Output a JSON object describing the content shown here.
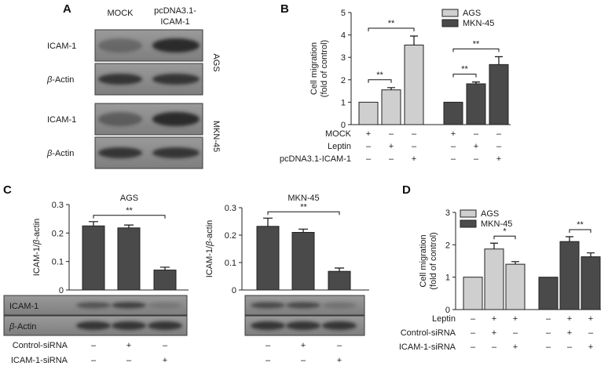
{
  "colors": {
    "light_bar": "#cfcfcf",
    "dark_bar": "#4a4a4a",
    "blot_bg": "#8a8a8a",
    "band": "#262626"
  },
  "panels": {
    "A": {
      "letter": "A",
      "columns": [
        "MOCK",
        "pcDNA3.1-",
        "ICAM-1"
      ],
      "blots": [
        {
          "cell_line": "AGS",
          "rows": [
            {
              "label": "ICAM-1",
              "label_italic_prefix": "",
              "label_rest": "ICAM-1",
              "intensity": [
                0.35,
                0.95
              ]
            },
            {
              "label": "β-Actin",
              "label_italic_prefix": "β",
              "label_rest": "-Actin",
              "intensity": [
                0.85,
                0.85
              ]
            }
          ]
        },
        {
          "cell_line": "MKN-45",
          "rows": [
            {
              "label": "ICAM-1",
              "label_italic_prefix": "",
              "label_rest": "ICAM-1",
              "intensity": [
                0.45,
                0.95
              ]
            },
            {
              "label": "β-Actin",
              "label_italic_prefix": "β",
              "label_rest": "-Actin",
              "intensity": [
                0.85,
                0.85
              ]
            }
          ]
        }
      ]
    },
    "B": {
      "letter": "B"
    },
    "C": {
      "letter": "C",
      "blot_labels": [
        "ICAM-1",
        "β-Actin"
      ]
    },
    "D": {
      "letter": "D"
    }
  },
  "chart_data": [
    {
      "id": "B",
      "type": "bar",
      "ylabel_lines": [
        "Cell migration",
        "(fold of control)"
      ],
      "ylim": [
        0,
        5
      ],
      "yticks": [
        "0",
        "1",
        "2",
        "3",
        "4",
        "5"
      ],
      "legend": [
        "AGS",
        "MKN-45"
      ],
      "legend_position": "top-right",
      "series": [
        {
          "name": "AGS",
          "color": "light",
          "values": [
            1.0,
            1.55,
            3.55
          ],
          "errors": [
            0,
            0.1,
            0.4
          ]
        },
        {
          "name": "MKN-45",
          "color": "dark",
          "values": [
            1.0,
            1.82,
            2.68
          ],
          "errors": [
            0,
            0.08,
            0.35
          ]
        }
      ],
      "significance": [
        {
          "series": 0,
          "from": 0,
          "to": 1,
          "label": "**"
        },
        {
          "series": 0,
          "from": 0,
          "to": 2,
          "label": "**"
        },
        {
          "series": 1,
          "from": 0,
          "to": 1,
          "label": "**"
        },
        {
          "series": 1,
          "from": 0,
          "to": 2,
          "label": "**"
        }
      ],
      "conditions": [
        {
          "label": "MOCK",
          "marks": [
            "+",
            "–",
            "–",
            "+",
            "–",
            "–"
          ]
        },
        {
          "label": "Leptin",
          "marks": [
            "–",
            "+",
            "–",
            "–",
            "+",
            "–"
          ]
        },
        {
          "label": "pcDNA3.1-ICAM-1",
          "marks": [
            "–",
            "–",
            "+",
            "–",
            "–",
            "+"
          ]
        }
      ]
    },
    {
      "id": "C1",
      "type": "bar",
      "title": "AGS",
      "ylabel": "ICAM-1/β-actin",
      "ylabel_italic": "β",
      "ylim": [
        0,
        0.3
      ],
      "yticks": [
        "0",
        "0.1",
        "0.2",
        "0.3"
      ],
      "values": [
        0.225,
        0.218,
        0.07
      ],
      "errors": [
        0.015,
        0.01,
        0.01
      ],
      "significance": [
        {
          "from": 0,
          "to": 2,
          "label": "**"
        }
      ],
      "blot_intensity": [
        [
          0.55,
          0.75,
          0.2
        ],
        [
          0.85,
          0.85,
          0.85
        ]
      ],
      "conditions": [
        {
          "label": "Control-siRNA",
          "marks": [
            "–",
            "+",
            "–"
          ]
        },
        {
          "label": "ICAM-1-siRNA",
          "marks": [
            "–",
            "–",
            "+"
          ]
        }
      ]
    },
    {
      "id": "C2",
      "type": "bar",
      "title": "MKN-45",
      "ylabel": "ICAM-1/β-actin",
      "ylabel_italic": "β",
      "ylim": [
        0,
        0.3
      ],
      "yticks": [
        "0",
        "0.1",
        "0.2",
        "0.3"
      ],
      "values": [
        0.232,
        0.21,
        0.068
      ],
      "errors": [
        0.03,
        0.012,
        0.012
      ],
      "significance": [
        {
          "from": 0,
          "to": 2,
          "label": "**"
        }
      ],
      "blot_intensity": [
        [
          0.65,
          0.65,
          0.25
        ],
        [
          0.85,
          0.85,
          0.85
        ]
      ],
      "conditions": [
        {
          "label": "",
          "marks": [
            "–",
            "+",
            "–"
          ]
        },
        {
          "label": "",
          "marks": [
            "–",
            "–",
            "+"
          ]
        }
      ]
    },
    {
      "id": "D",
      "type": "bar",
      "ylabel_lines": [
        "Cell migration",
        "(fold of control)"
      ],
      "ylim": [
        0,
        3
      ],
      "yticks": [
        "0",
        "1",
        "2",
        "3"
      ],
      "legend": [
        "AGS",
        "MKN-45"
      ],
      "legend_position": "top-left",
      "series": [
        {
          "name": "AGS",
          "color": "light",
          "values": [
            1.0,
            1.87,
            1.4
          ],
          "errors": [
            0,
            0.18,
            0.08
          ]
        },
        {
          "name": "MKN-45",
          "color": "dark",
          "values": [
            1.0,
            2.1,
            1.63
          ],
          "errors": [
            0,
            0.15,
            0.12
          ]
        }
      ],
      "significance": [
        {
          "series": 0,
          "from": 1,
          "to": 2,
          "label": "*"
        },
        {
          "series": 1,
          "from": 1,
          "to": 2,
          "label": "**"
        }
      ],
      "conditions": [
        {
          "label": "Leptin",
          "marks": [
            "–",
            "+",
            "+",
            "–",
            "+",
            "+"
          ]
        },
        {
          "label": "Control-siRNA",
          "marks": [
            "–",
            "+",
            "–",
            "–",
            "+",
            "–"
          ]
        },
        {
          "label": "ICAM-1-siRNA",
          "marks": [
            "–",
            "–",
            "+",
            "–",
            "–",
            "+"
          ]
        }
      ]
    }
  ]
}
